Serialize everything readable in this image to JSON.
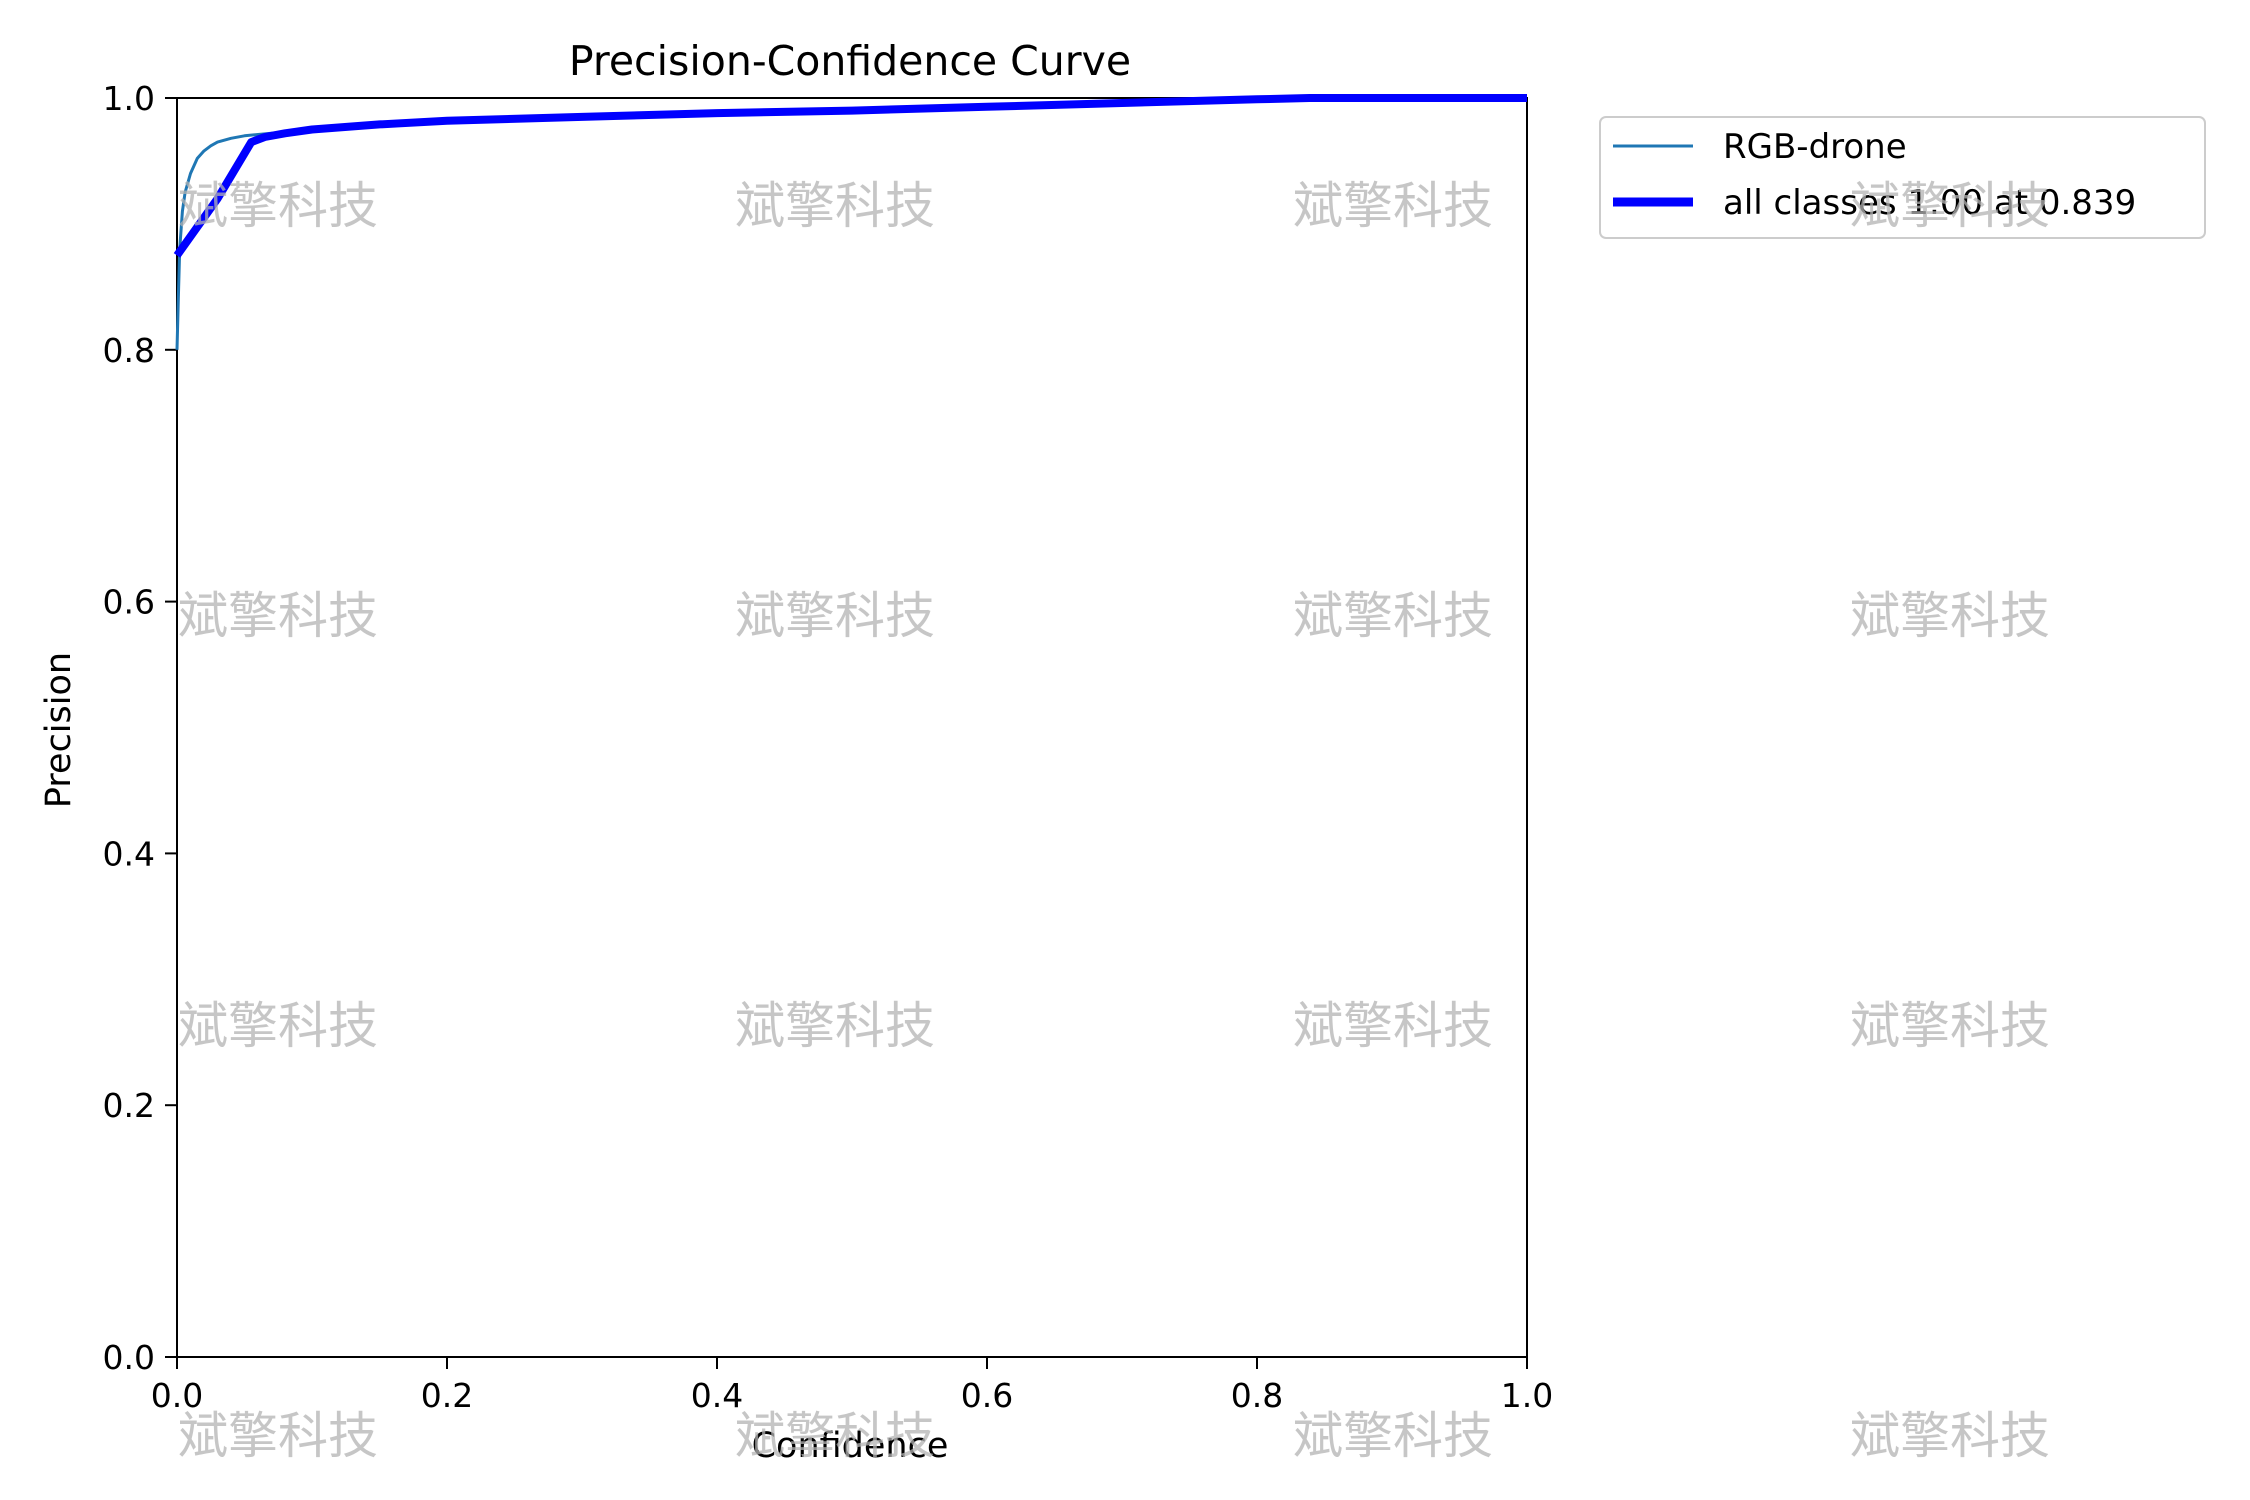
{
  "chart_data": {
    "type": "line",
    "title": "Precision-Confidence Curve",
    "xlabel": "Confidence",
    "ylabel": "Precision",
    "xlim": [
      0,
      1
    ],
    "ylim": [
      0,
      1
    ],
    "xticks": [
      "0.0",
      "0.2",
      "0.4",
      "0.6",
      "0.8",
      "1.0"
    ],
    "yticks": [
      "0.0",
      "0.2",
      "0.4",
      "0.6",
      "0.8",
      "1.0"
    ],
    "grid": false,
    "legend_position": "outside-top-right",
    "series": [
      {
        "name": "RGB-drone",
        "color": "#1f77b4",
        "x": [
          0.0,
          0.001,
          0.002,
          0.004,
          0.006,
          0.01,
          0.015,
          0.02,
          0.025,
          0.03,
          0.04,
          0.05,
          0.06,
          0.08,
          0.1,
          0.15,
          0.2,
          0.3,
          0.4,
          0.5,
          0.6,
          0.7,
          0.8,
          0.84,
          0.9,
          1.0
        ],
        "y": [
          0.8,
          0.84,
          0.88,
          0.91,
          0.925,
          0.94,
          0.952,
          0.958,
          0.962,
          0.965,
          0.968,
          0.97,
          0.971,
          0.973,
          0.975,
          0.979,
          0.982,
          0.985,
          0.988,
          0.99,
          0.993,
          0.996,
          0.999,
          1.0,
          1.0,
          1.0
        ]
      },
      {
        "name": "all classes 1.00 at 0.839",
        "color": "#0000ff",
        "x": [
          0.0,
          0.03,
          0.055,
          0.065,
          0.08,
          0.1,
          0.15,
          0.2,
          0.3,
          0.4,
          0.5,
          0.6,
          0.7,
          0.8,
          0.839,
          0.9,
          1.0
        ],
        "y": [
          0.875,
          0.92,
          0.965,
          0.969,
          0.972,
          0.975,
          0.979,
          0.982,
          0.985,
          0.988,
          0.99,
          0.993,
          0.996,
          0.999,
          1.0,
          1.0,
          1.0
        ]
      }
    ]
  },
  "watermark": {
    "text": "斌擎科技"
  }
}
